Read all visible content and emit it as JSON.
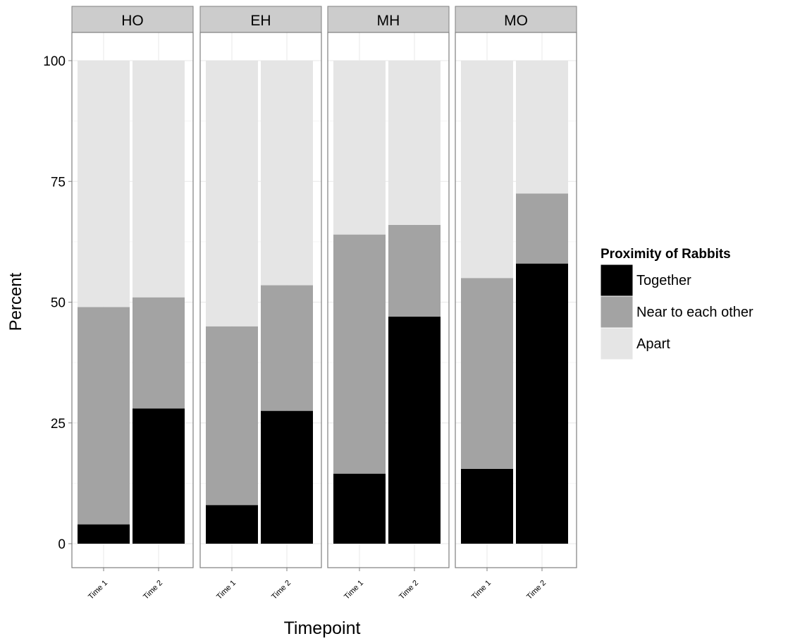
{
  "chart_data": {
    "type": "bar",
    "stacked": true,
    "facets": [
      "HO",
      "EH",
      "MH",
      "MO"
    ],
    "categories": [
      "Time 1",
      "Time 2"
    ],
    "series": [
      {
        "name": "Together",
        "color": "#000000",
        "values": {
          "HO": [
            4,
            28
          ],
          "EH": [
            8,
            27.5
          ],
          "MH": [
            14.5,
            47
          ],
          "MO": [
            15.5,
            58
          ]
        }
      },
      {
        "name": "Near to each other",
        "color": "#a3a3a3",
        "values": {
          "HO": [
            45,
            23
          ],
          "EH": [
            37,
            26
          ],
          "MH": [
            49.5,
            19
          ],
          "MO": [
            39.5,
            14.5
          ]
        }
      },
      {
        "name": "Apart",
        "color": "#e5e5e5",
        "values": {
          "HO": [
            51,
            49
          ],
          "EH": [
            55,
            46.5
          ],
          "MH": [
            36,
            34
          ],
          "MO": [
            45,
            27.5
          ]
        }
      }
    ],
    "xlabel": "Timepoint",
    "ylabel": "Percent",
    "ylim": [
      0,
      100
    ],
    "yticks": [
      0,
      25,
      50,
      75,
      100
    ],
    "legend_title": "Proximity of Rabbits",
    "legend_position": "right",
    "grid": true
  }
}
